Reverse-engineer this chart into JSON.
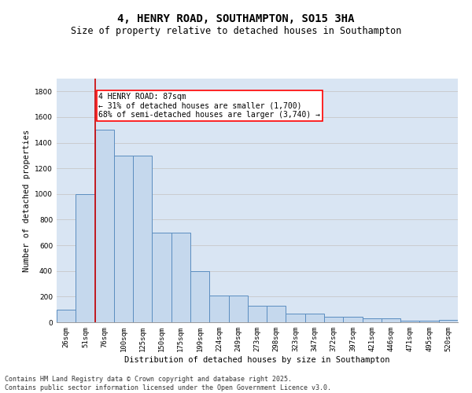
{
  "title": "4, HENRY ROAD, SOUTHAMPTON, SO15 3HA",
  "subtitle": "Size of property relative to detached houses in Southampton",
  "xlabel": "Distribution of detached houses by size in Southampton",
  "ylabel": "Number of detached properties",
  "categories": [
    "26sqm",
    "51sqm",
    "76sqm",
    "100sqm",
    "125sqm",
    "150sqm",
    "175sqm",
    "199sqm",
    "224sqm",
    "249sqm",
    "273sqm",
    "298sqm",
    "323sqm",
    "347sqm",
    "372sqm",
    "397sqm",
    "421sqm",
    "446sqm",
    "471sqm",
    "495sqm",
    "520sqm"
  ],
  "values": [
    100,
    1000,
    1500,
    1300,
    1300,
    700,
    700,
    400,
    210,
    210,
    130,
    130,
    65,
    65,
    40,
    40,
    30,
    30,
    15,
    15,
    20
  ],
  "bar_color": "#c5d8ed",
  "bar_edge_color": "#5b8dc0",
  "grid_color": "#c8c8c8",
  "bg_color": "#d9e5f3",
  "vline_color": "#cc0000",
  "annotation_text": "4 HENRY ROAD: 87sqm\n← 31% of detached houses are smaller (1,700)\n68% of semi-detached houses are larger (3,740) →",
  "ylim": [
    0,
    1900
  ],
  "yticks": [
    0,
    200,
    400,
    600,
    800,
    1000,
    1200,
    1400,
    1600,
    1800
  ],
  "footer": "Contains HM Land Registry data © Crown copyright and database right 2025.\nContains public sector information licensed under the Open Government Licence v3.0.",
  "title_fontsize": 10,
  "subtitle_fontsize": 8.5,
  "axis_label_fontsize": 7.5,
  "tick_fontsize": 6.5,
  "footer_fontsize": 6,
  "annotation_fontsize": 7
}
